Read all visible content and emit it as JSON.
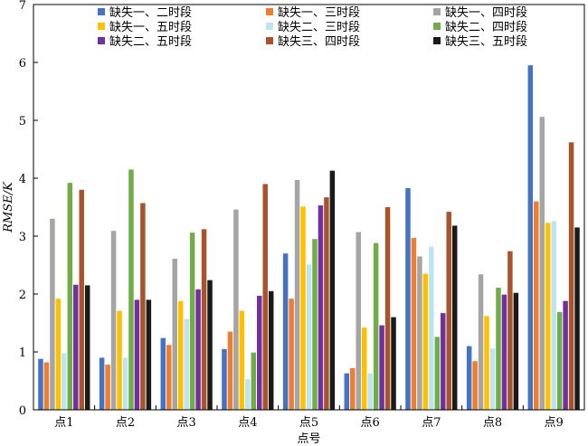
{
  "chart_data": {
    "type": "bar",
    "title": "",
    "xlabel": "点号",
    "ylabel": "RMSE/K",
    "ylim": [
      0,
      7
    ],
    "yticks": [
      0,
      1,
      2,
      3,
      4,
      5,
      6,
      7
    ],
    "grid": false,
    "legend_position": "top",
    "categories": [
      "点1",
      "点2",
      "点3",
      "点4",
      "点5",
      "点6",
      "点7",
      "点8",
      "点9"
    ],
    "series": [
      {
        "name": "缺失一、二时段",
        "color": "#4472C4",
        "values": [
          0.88,
          0.9,
          1.24,
          1.05,
          2.7,
          0.63,
          3.83,
          1.1,
          5.95
        ]
      },
      {
        "name": "缺失一、三时段",
        "color": "#ED7D31",
        "values": [
          0.82,
          0.78,
          1.12,
          1.35,
          1.92,
          0.72,
          2.97,
          0.84,
          3.6
        ]
      },
      {
        "name": "缺失一、四时段",
        "color": "#A5A5A5",
        "values": [
          3.3,
          3.09,
          2.61,
          3.46,
          3.97,
          3.07,
          2.65,
          2.34,
          5.06
        ]
      },
      {
        "name": "缺失一、五时段",
        "color": "#FFC000",
        "values": [
          1.92,
          1.71,
          1.88,
          1.71,
          3.51,
          1.42,
          2.35,
          1.62,
          3.23
        ]
      },
      {
        "name": "缺失二、三时段",
        "color": "#BDE4F0",
        "values": [
          0.98,
          0.9,
          1.57,
          0.53,
          2.51,
          0.63,
          2.82,
          1.06,
          3.26
        ]
      },
      {
        "name": "缺失二、四时段",
        "color": "#70AD47",
        "values": [
          3.92,
          4.15,
          3.06,
          0.99,
          2.95,
          2.88,
          1.26,
          2.11,
          1.69
        ]
      },
      {
        "name": "缺失二、五时段",
        "color": "#7030A0",
        "values": [
          2.16,
          1.9,
          2.08,
          1.97,
          3.53,
          1.46,
          1.67,
          1.99,
          1.88
        ]
      },
      {
        "name": "缺失三、四时段",
        "color": "#A9532B",
        "values": [
          3.8,
          3.57,
          3.12,
          3.9,
          3.67,
          3.5,
          3.42,
          2.74,
          4.62
        ]
      },
      {
        "name": "缺失三、五时段",
        "color": "#1A1A1A",
        "values": [
          2.15,
          1.9,
          2.24,
          2.05,
          4.13,
          1.6,
          3.18,
          2.02,
          3.15
        ]
      }
    ]
  }
}
